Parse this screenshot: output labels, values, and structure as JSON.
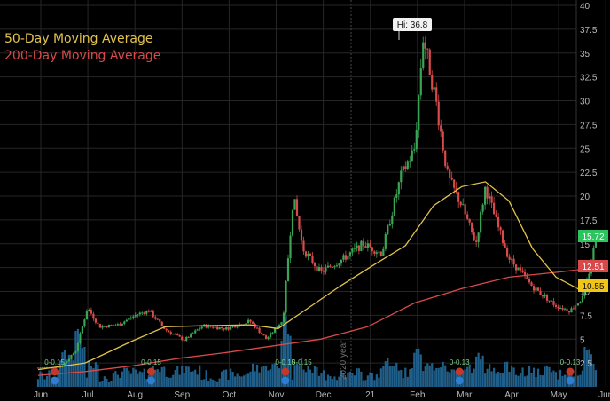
{
  "legend": {
    "ma50_label": "50-Day Moving Average",
    "ma200_label": "200-Day Moving Average"
  },
  "colors": {
    "background": "#000000",
    "grid": "#262626",
    "ma50": "#e3c34b",
    "ma200": "#d84a4a",
    "candle_up": "#3aa655",
    "candle_down": "#d94a4a",
    "volume": "#1f5f8a",
    "tag_last": "#2cc45f",
    "tag_ma200": "#d84a4a",
    "tag_ma50": "#f0c419",
    "axis_text": "#b8b8b8"
  },
  "chart_data": {
    "type": "candlestick",
    "y_axis": {
      "ticks": [
        "2.5",
        "5",
        "7.5",
        "10",
        "12.5",
        "15",
        "17.5",
        "20",
        "22.5",
        "25",
        "27.5",
        "30",
        "32.5",
        "35",
        "37.5",
        "40"
      ],
      "range": [
        0,
        40
      ],
      "position": "right"
    },
    "x_axis": {
      "labels": [
        "Jun",
        "Jul",
        "Aug",
        "Sep",
        "Oct",
        "Nov",
        "Dec",
        "21",
        "Feb",
        "Mar",
        "Apr",
        "May",
        "Jun"
      ]
    },
    "year_divider_label": "2020 year",
    "high_annotation": "Hi: 36.8",
    "price_tags": {
      "last": "15.72",
      "ma200": "12.51",
      "ma50": "10.55"
    },
    "event_markers": {
      "dividend_labels": [
        "0-0.15",
        "0-0.15",
        "0-0.15",
        "0-0.15",
        "0-0.13",
        "0-0.13"
      ]
    },
    "price_path": [
      {
        "month": 0.0,
        "close": 2.0
      },
      {
        "month": 0.5,
        "close": 2.1
      },
      {
        "month": 0.8,
        "close": 3.8
      },
      {
        "month": 1.05,
        "close": 8.3
      },
      {
        "month": 1.3,
        "close": 6.3
      },
      {
        "month": 1.7,
        "close": 6.5
      },
      {
        "month": 2.1,
        "close": 7.6
      },
      {
        "month": 2.35,
        "close": 8.0
      },
      {
        "month": 2.7,
        "close": 6.0
      },
      {
        "month": 3.1,
        "close": 4.9
      },
      {
        "month": 3.5,
        "close": 6.4
      },
      {
        "month": 4.0,
        "close": 6.1
      },
      {
        "month": 4.5,
        "close": 6.9
      },
      {
        "month": 4.85,
        "close": 5.0
      },
      {
        "month": 5.2,
        "close": 7.0
      },
      {
        "month": 5.42,
        "close": 20.0
      },
      {
        "month": 5.62,
        "close": 14.5
      },
      {
        "month": 6.0,
        "close": 12.0
      },
      {
        "month": 6.5,
        "close": 13.5
      },
      {
        "month": 6.9,
        "close": 15.0
      },
      {
        "month": 7.3,
        "close": 14.0
      },
      {
        "month": 7.7,
        "close": 22.0
      },
      {
        "month": 8.0,
        "close": 25.0
      },
      {
        "month": 8.18,
        "close": 36.8
      },
      {
        "month": 8.45,
        "close": 30.0
      },
      {
        "month": 8.7,
        "close": 22.0
      },
      {
        "month": 9.0,
        "close": 19.0
      },
      {
        "month": 9.3,
        "close": 15.0
      },
      {
        "month": 9.5,
        "close": 21.0
      },
      {
        "month": 9.75,
        "close": 17.0
      },
      {
        "month": 10.0,
        "close": 13.5
      },
      {
        "month": 10.5,
        "close": 10.5
      },
      {
        "month": 11.0,
        "close": 8.5
      },
      {
        "month": 11.3,
        "close": 8.0
      },
      {
        "month": 11.6,
        "close": 9.5
      },
      {
        "month": 11.85,
        "close": 15.7
      }
    ],
    "series": [
      {
        "name": "50-Day Moving Average",
        "values": [
          {
            "month": 0.0,
            "value": 1.8
          },
          {
            "month": 1.0,
            "value": 2.5
          },
          {
            "month": 2.0,
            "value": 4.8
          },
          {
            "month": 2.7,
            "value": 6.3
          },
          {
            "month": 3.5,
            "value": 6.4
          },
          {
            "month": 4.5,
            "value": 6.5
          },
          {
            "month": 5.1,
            "value": 6.1
          },
          {
            "month": 5.6,
            "value": 7.8
          },
          {
            "month": 6.4,
            "value": 10.5
          },
          {
            "month": 7.2,
            "value": 13.0
          },
          {
            "month": 7.8,
            "value": 14.8
          },
          {
            "month": 8.4,
            "value": 19.0
          },
          {
            "month": 9.0,
            "value": 21.0
          },
          {
            "month": 9.5,
            "value": 21.5
          },
          {
            "month": 10.0,
            "value": 19.5
          },
          {
            "month": 10.5,
            "value": 14.5
          },
          {
            "month": 11.0,
            "value": 11.5
          },
          {
            "month": 11.5,
            "value": 10.2
          },
          {
            "month": 11.9,
            "value": 10.55
          }
        ]
      },
      {
        "name": "200-Day Moving Average",
        "values": [
          {
            "month": 0.0,
            "value": 1.2
          },
          {
            "month": 1.0,
            "value": 1.6
          },
          {
            "month": 2.0,
            "value": 2.2
          },
          {
            "month": 3.0,
            "value": 3.0
          },
          {
            "month": 4.0,
            "value": 3.6
          },
          {
            "month": 5.0,
            "value": 4.3
          },
          {
            "month": 6.0,
            "value": 5.0
          },
          {
            "month": 7.0,
            "value": 6.3
          },
          {
            "month": 8.0,
            "value": 8.8
          },
          {
            "month": 9.0,
            "value": 10.3
          },
          {
            "month": 10.0,
            "value": 11.5
          },
          {
            "month": 11.0,
            "value": 12.0
          },
          {
            "month": 11.9,
            "value": 12.51
          }
        ]
      }
    ]
  }
}
